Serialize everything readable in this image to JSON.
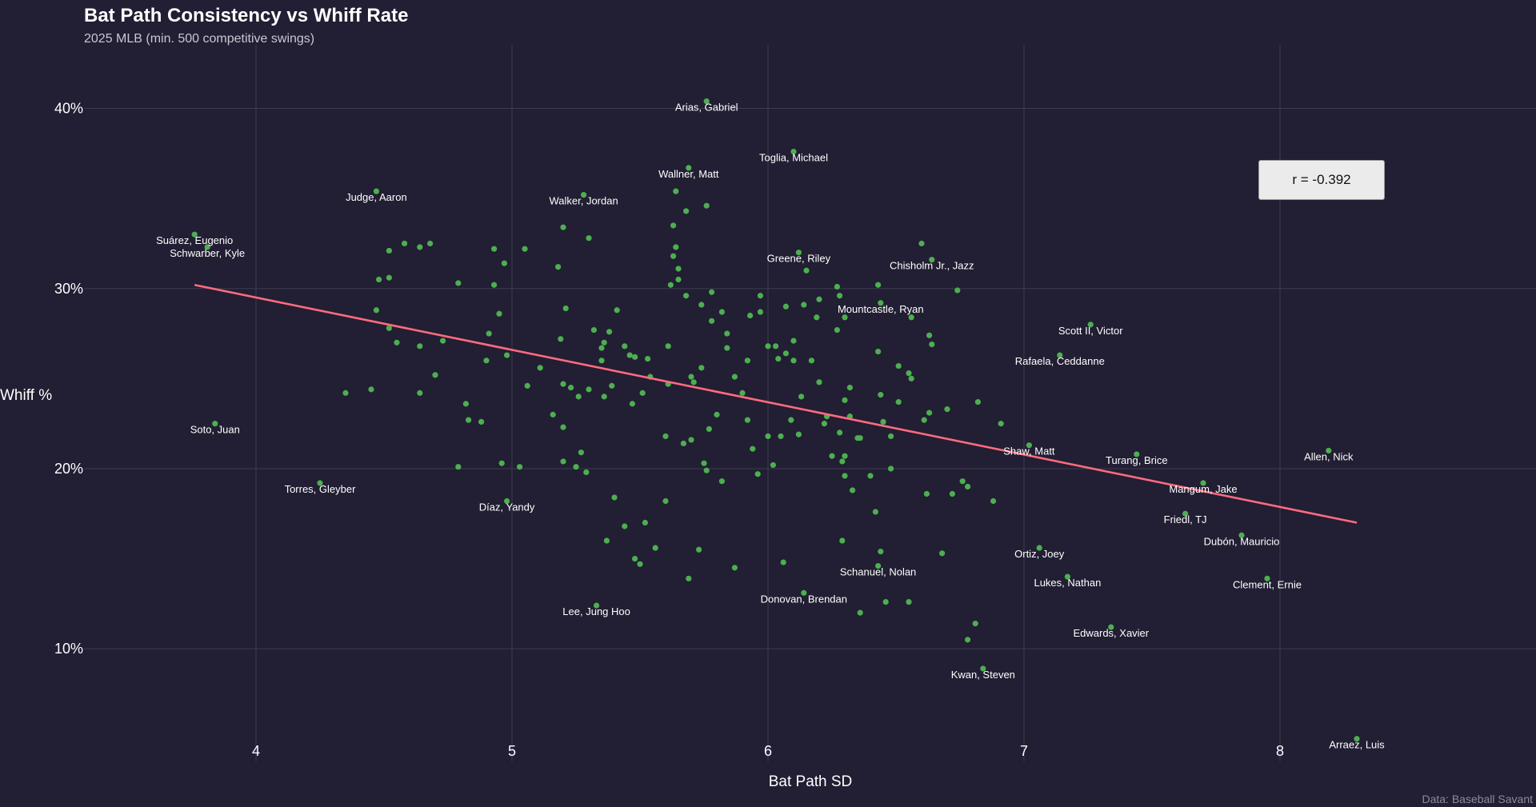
{
  "chart_data": {
    "type": "scatter",
    "title": "Bat Path Consistency vs Whiff Rate",
    "subtitle": "2025 MLB (min. 500 competitive swings)",
    "xlabel": "Bat Path SD",
    "ylabel": "Whiff %",
    "caption": "Data: Baseball Savant",
    "annotation": "r = -0.392",
    "xlim": [
      3.0,
      9.0
    ],
    "ylim": [
      0.045,
      0.43
    ],
    "x_ticks": [
      4,
      5,
      6,
      7,
      8
    ],
    "x_tick_labels": [
      "4",
      "5",
      "6",
      "7",
      "8"
    ],
    "y_ticks": [
      0.1,
      0.2,
      0.3,
      0.4
    ],
    "y_tick_labels": [
      "10%",
      "20%",
      "30%",
      "40%"
    ],
    "grid": true,
    "colors": {
      "background": "#221e33",
      "point": "#4caf50",
      "trend": "#ff6b7f",
      "grid": "#3e3a52"
    },
    "trend_line": {
      "x": [
        3.76,
        8.3
      ],
      "y": [
        0.302,
        0.17
      ]
    },
    "labeled_points": [
      {
        "name": "Arias, Gabriel",
        "x": 5.76,
        "y": 0.404
      },
      {
        "name": "Toglia, Michael",
        "x": 6.1,
        "y": 0.376
      },
      {
        "name": "Wallner, Matt",
        "x": 5.69,
        "y": 0.367
      },
      {
        "name": "Judge, Aaron",
        "x": 4.47,
        "y": 0.354
      },
      {
        "name": "Walker, Jordan",
        "x": 5.28,
        "y": 0.352
      },
      {
        "name": "Suárez, Eugenio",
        "x": 3.76,
        "y": 0.33
      },
      {
        "name": "Schwarber, Kyle",
        "x": 3.81,
        "y": 0.323
      },
      {
        "name": "Greene, Riley",
        "x": 6.12,
        "y": 0.32
      },
      {
        "name": "Chisholm Jr., Jazz",
        "x": 6.64,
        "y": 0.316
      },
      {
        "name": "Mountcastle, Ryan",
        "x": 6.44,
        "y": 0.292
      },
      {
        "name": "Scott II, Victor",
        "x": 7.26,
        "y": 0.28
      },
      {
        "name": "Rafaela, Ceddanne",
        "x": 7.14,
        "y": 0.263
      },
      {
        "name": "Soto, Juan",
        "x": 3.84,
        "y": 0.225
      },
      {
        "name": "Shaw, Matt",
        "x": 7.02,
        "y": 0.213
      },
      {
        "name": "Allen, Nick",
        "x": 8.19,
        "y": 0.21
      },
      {
        "name": "Turang, Brice",
        "x": 7.44,
        "y": 0.208
      },
      {
        "name": "Torres, Gleyber",
        "x": 4.25,
        "y": 0.192
      },
      {
        "name": "Mangum, Jake",
        "x": 7.7,
        "y": 0.192
      },
      {
        "name": "Díaz, Yandy",
        "x": 4.98,
        "y": 0.182
      },
      {
        "name": "Friedl, TJ",
        "x": 7.63,
        "y": 0.175
      },
      {
        "name": "Dubón, Mauricio",
        "x": 7.85,
        "y": 0.163
      },
      {
        "name": "Ortiz, Joey",
        "x": 7.06,
        "y": 0.156
      },
      {
        "name": "Schanuel, Nolan",
        "x": 6.43,
        "y": 0.146
      },
      {
        "name": "Lukes, Nathan",
        "x": 7.17,
        "y": 0.14
      },
      {
        "name": "Clement, Ernie",
        "x": 7.95,
        "y": 0.139
      },
      {
        "name": "Donovan, Brendan",
        "x": 6.14,
        "y": 0.131
      },
      {
        "name": "Lee, Jung Hoo",
        "x": 5.33,
        "y": 0.124
      },
      {
        "name": "Edwards, Xavier",
        "x": 7.34,
        "y": 0.112
      },
      {
        "name": "Kwan, Steven",
        "x": 6.84,
        "y": 0.089
      },
      {
        "name": "Arraez, Luis",
        "x": 8.3,
        "y": 0.05
      }
    ],
    "points": [
      [
        4.35,
        0.242
      ],
      [
        4.45,
        0.244
      ],
      [
        4.48,
        0.305
      ],
      [
        4.52,
        0.306
      ],
      [
        4.52,
        0.321
      ],
      [
        4.58,
        0.325
      ],
      [
        4.64,
        0.323
      ],
      [
        4.68,
        0.325
      ],
      [
        4.47,
        0.288
      ],
      [
        4.52,
        0.278
      ],
      [
        4.55,
        0.27
      ],
      [
        4.64,
        0.268
      ],
      [
        4.64,
        0.242
      ],
      [
        4.7,
        0.252
      ],
      [
        4.73,
        0.271
      ],
      [
        4.79,
        0.303
      ],
      [
        4.82,
        0.236
      ],
      [
        4.83,
        0.227
      ],
      [
        4.88,
        0.226
      ],
      [
        4.91,
        0.275
      ],
      [
        4.93,
        0.302
      ],
      [
        4.93,
        0.322
      ],
      [
        4.95,
        0.286
      ],
      [
        4.97,
        0.314
      ],
      [
        4.98,
        0.263
      ],
      [
        4.9,
        0.26
      ],
      [
        4.79,
        0.201
      ],
      [
        4.96,
        0.203
      ],
      [
        5.03,
        0.201
      ],
      [
        5.05,
        0.322
      ],
      [
        5.06,
        0.246
      ],
      [
        5.11,
        0.256
      ],
      [
        5.16,
        0.23
      ],
      [
        5.18,
        0.312
      ],
      [
        5.19,
        0.272
      ],
      [
        5.2,
        0.247
      ],
      [
        5.2,
        0.223
      ],
      [
        5.2,
        0.204
      ],
      [
        5.2,
        0.334
      ],
      [
        5.21,
        0.289
      ],
      [
        5.23,
        0.245
      ],
      [
        5.25,
        0.201
      ],
      [
        5.26,
        0.24
      ],
      [
        5.27,
        0.209
      ],
      [
        5.29,
        0.198
      ],
      [
        5.3,
        0.328
      ],
      [
        5.3,
        0.244
      ],
      [
        5.32,
        0.277
      ],
      [
        5.35,
        0.26
      ],
      [
        5.35,
        0.267
      ],
      [
        5.36,
        0.27
      ],
      [
        5.36,
        0.24
      ],
      [
        5.37,
        0.16
      ],
      [
        5.38,
        0.276
      ],
      [
        5.39,
        0.246
      ],
      [
        5.4,
        0.184
      ],
      [
        5.41,
        0.288
      ],
      [
        5.44,
        0.168
      ],
      [
        5.44,
        0.268
      ],
      [
        5.46,
        0.263
      ],
      [
        5.47,
        0.236
      ],
      [
        5.48,
        0.15
      ],
      [
        5.48,
        0.262
      ],
      [
        5.5,
        0.147
      ],
      [
        5.51,
        0.242
      ],
      [
        5.52,
        0.17
      ],
      [
        5.53,
        0.261
      ],
      [
        5.54,
        0.251
      ],
      [
        5.56,
        0.156
      ],
      [
        5.6,
        0.182
      ],
      [
        5.6,
        0.218
      ],
      [
        5.61,
        0.268
      ],
      [
        5.61,
        0.247
      ],
      [
        5.62,
        0.302
      ],
      [
        5.63,
        0.335
      ],
      [
        5.63,
        0.318
      ],
      [
        5.64,
        0.323
      ],
      [
        5.64,
        0.354
      ],
      [
        5.65,
        0.311
      ],
      [
        5.65,
        0.305
      ],
      [
        5.67,
        0.214
      ],
      [
        5.68,
        0.296
      ],
      [
        5.68,
        0.343
      ],
      [
        5.69,
        0.139
      ],
      [
        5.7,
        0.216
      ],
      [
        5.7,
        0.251
      ],
      [
        5.71,
        0.248
      ],
      [
        5.73,
        0.155
      ],
      [
        5.74,
        0.256
      ],
      [
        5.74,
        0.291
      ],
      [
        5.75,
        0.203
      ],
      [
        5.76,
        0.199
      ],
      [
        5.76,
        0.346
      ],
      [
        5.77,
        0.222
      ],
      [
        5.78,
        0.282
      ],
      [
        5.78,
        0.298
      ],
      [
        5.8,
        0.23
      ],
      [
        5.82,
        0.193
      ],
      [
        5.82,
        0.287
      ],
      [
        5.84,
        0.275
      ],
      [
        5.84,
        0.267
      ],
      [
        5.87,
        0.145
      ],
      [
        5.87,
        0.251
      ],
      [
        5.9,
        0.242
      ],
      [
        5.92,
        0.227
      ],
      [
        5.92,
        0.26
      ],
      [
        5.93,
        0.285
      ],
      [
        5.94,
        0.211
      ],
      [
        5.96,
        0.197
      ],
      [
        5.97,
        0.296
      ],
      [
        5.97,
        0.287
      ],
      [
        6.0,
        0.218
      ],
      [
        6.0,
        0.268
      ],
      [
        6.02,
        0.202
      ],
      [
        6.03,
        0.268
      ],
      [
        6.04,
        0.261
      ],
      [
        6.05,
        0.218
      ],
      [
        6.06,
        0.148
      ],
      [
        6.07,
        0.29
      ],
      [
        6.07,
        0.264
      ],
      [
        6.09,
        0.227
      ],
      [
        6.1,
        0.271
      ],
      [
        6.1,
        0.26
      ],
      [
        6.12,
        0.219
      ],
      [
        6.13,
        0.24
      ],
      [
        6.14,
        0.291
      ],
      [
        6.15,
        0.31
      ],
      [
        6.17,
        0.26
      ],
      [
        6.19,
        0.284
      ],
      [
        6.2,
        0.294
      ],
      [
        6.2,
        0.248
      ],
      [
        6.22,
        0.225
      ],
      [
        6.23,
        0.229
      ],
      [
        6.25,
        0.207
      ],
      [
        6.27,
        0.277
      ],
      [
        6.27,
        0.301
      ],
      [
        6.28,
        0.296
      ],
      [
        6.28,
        0.22
      ],
      [
        6.29,
        0.204
      ],
      [
        6.29,
        0.16
      ],
      [
        6.3,
        0.284
      ],
      [
        6.3,
        0.207
      ],
      [
        6.3,
        0.196
      ],
      [
        6.3,
        0.238
      ],
      [
        6.32,
        0.229
      ],
      [
        6.32,
        0.245
      ],
      [
        6.33,
        0.188
      ],
      [
        6.35,
        0.217
      ],
      [
        6.36,
        0.217
      ],
      [
        6.36,
        0.12
      ],
      [
        6.4,
        0.196
      ],
      [
        6.42,
        0.176
      ],
      [
        6.43,
        0.302
      ],
      [
        6.43,
        0.265
      ],
      [
        6.44,
        0.154
      ],
      [
        6.44,
        0.241
      ],
      [
        6.45,
        0.226
      ],
      [
        6.46,
        0.126
      ],
      [
        6.48,
        0.2
      ],
      [
        6.48,
        0.218
      ],
      [
        6.51,
        0.237
      ],
      [
        6.51,
        0.257
      ],
      [
        6.55,
        0.126
      ],
      [
        6.55,
        0.253
      ],
      [
        6.56,
        0.25
      ],
      [
        6.56,
        0.284
      ],
      [
        6.6,
        0.325
      ],
      [
        6.61,
        0.227
      ],
      [
        6.62,
        0.186
      ],
      [
        6.63,
        0.231
      ],
      [
        6.63,
        0.274
      ],
      [
        6.64,
        0.269
      ],
      [
        6.68,
        0.153
      ],
      [
        6.7,
        0.233
      ],
      [
        6.72,
        0.186
      ],
      [
        6.74,
        0.299
      ],
      [
        6.76,
        0.193
      ],
      [
        6.78,
        0.19
      ],
      [
        6.78,
        0.105
      ],
      [
        6.81,
        0.114
      ],
      [
        6.82,
        0.237
      ],
      [
        6.88,
        0.182
      ],
      [
        6.91,
        0.225
      ]
    ]
  }
}
